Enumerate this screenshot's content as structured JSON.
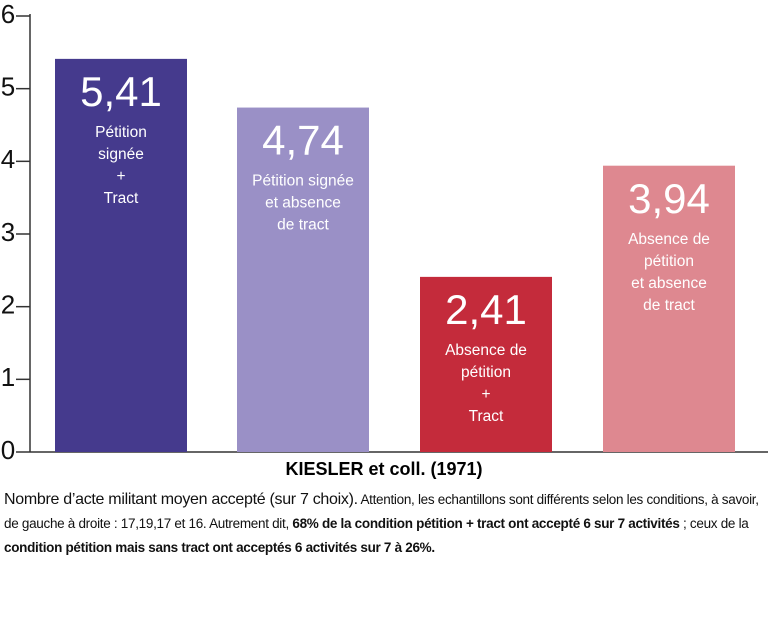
{
  "chart_data": {
    "type": "bar",
    "categories": [
      [
        "Pétition",
        "signée",
        "+",
        "Tract"
      ],
      [
        "Pétition signée",
        "et absence",
        "de tract"
      ],
      [
        "Absence de",
        "pétition",
        "+",
        "Tract"
      ],
      [
        "Absence de",
        "pétition",
        "et absence",
        "de tract"
      ]
    ],
    "values": [
      5.41,
      4.74,
      2.41,
      3.94
    ],
    "value_labels": [
      "5,41",
      "4,74",
      "2,41",
      "3,94"
    ],
    "colors": [
      "#453a8d",
      "#9a90c6",
      "#c42b3b",
      "#de8890"
    ],
    "ylim": [
      0,
      6
    ],
    "yticks": [
      0,
      1,
      2,
      3,
      4,
      5,
      6
    ],
    "x_label": "KIESLER et coll. (1971)",
    "caption": [
      {
        "text": "Nombre d’acte militant moyen accepté (sur 7 choix).",
        "bold": false
      },
      {
        "text": " Attention, les echantillons sont différents selon les conditions, à savoir, de gauche à droite : 17,19,17 et 16. Autrement dit, ",
        "bold": false
      },
      {
        "text": "68% de la condition pétition + tract ont accepté 6 sur 7 activités",
        "bold": true
      },
      {
        "text": " ; ceux de la ",
        "bold": false
      },
      {
        "text": "condition  pétition mais sans tract ont acceptés 6 activités sur 7 à 26%.",
        "bold": true
      }
    ]
  }
}
